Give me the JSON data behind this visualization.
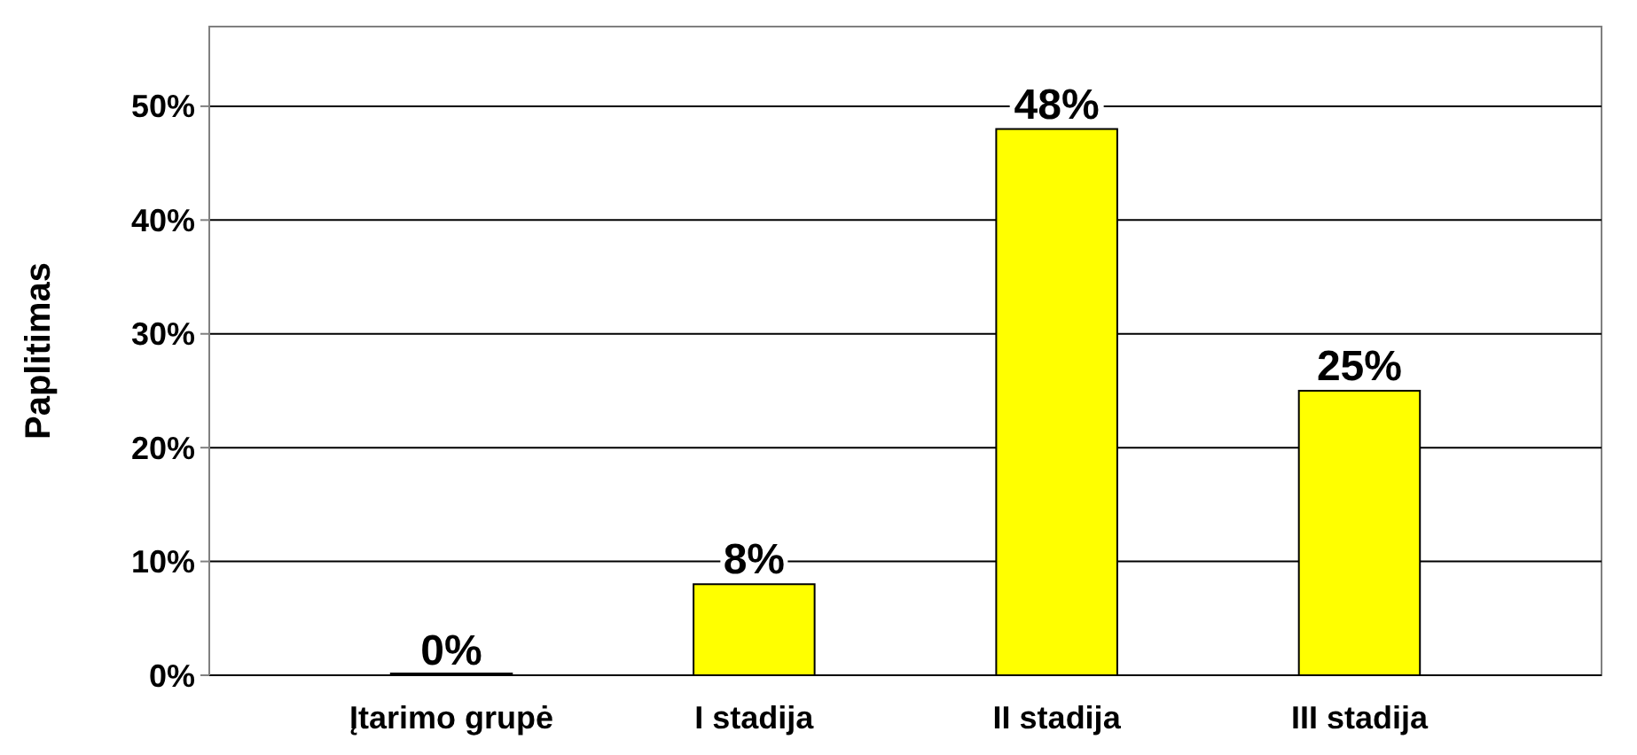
{
  "chart_data": {
    "type": "bar",
    "ylabel": "Paplitimas",
    "categories": [
      "Įtarimo grupė",
      "I stadija",
      "II stadija",
      "III stadija"
    ],
    "values": [
      0,
      8,
      48,
      25
    ],
    "color": "#ffff00",
    "value_labels": [
      "0%",
      "8%",
      "48%",
      "25%"
    ],
    "ylim": [
      0,
      57
    ],
    "yticks": [
      {
        "value": 0,
        "label": "0%"
      },
      {
        "value": 10,
        "label": "10%"
      },
      {
        "value": 20,
        "label": "20%"
      },
      {
        "value": 30,
        "label": "30%"
      },
      {
        "value": 40,
        "label": "40%"
      },
      {
        "value": 50,
        "label": "50%"
      }
    ],
    "grid": "y"
  }
}
